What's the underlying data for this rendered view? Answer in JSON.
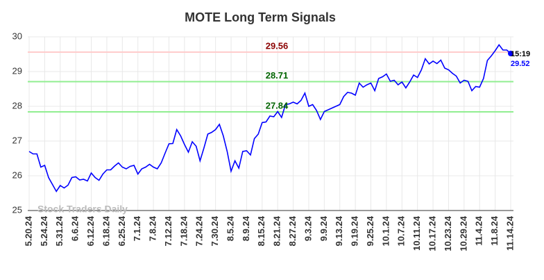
{
  "chart_data": {
    "type": "line",
    "title": "MOTE Long Term Signals",
    "watermark": "Stock Traders Daily",
    "last_label": "15:19",
    "categories": [
      "5.20.24",
      null,
      null,
      null,
      "5.24.24",
      null,
      null,
      null,
      "5.31.24",
      null,
      null,
      null,
      "6.6.24",
      null,
      null,
      null,
      "6.12.24",
      null,
      null,
      null,
      "6.18.24",
      null,
      null,
      null,
      "6.25.24",
      null,
      null,
      null,
      "7.1.24",
      null,
      null,
      null,
      "7.8.24",
      null,
      null,
      null,
      "7.12.24",
      null,
      null,
      null,
      "7.18.24",
      null,
      null,
      null,
      "7.24.24",
      null,
      null,
      null,
      "7.30.24",
      null,
      null,
      null,
      "8.5.24",
      null,
      null,
      null,
      "8.9.24",
      null,
      null,
      null,
      "8.15.24",
      null,
      null,
      null,
      "8.21.24",
      null,
      null,
      null,
      "8.27.24",
      null,
      null,
      null,
      "9.3.24",
      null,
      null,
      null,
      "9.9.24",
      null,
      null,
      null,
      "9.13.24",
      null,
      null,
      null,
      "9.19.24",
      null,
      null,
      null,
      "9.25.24",
      null,
      null,
      null,
      "10.1.24",
      null,
      null,
      null,
      "10.7.24",
      null,
      null,
      null,
      "10.11.24",
      null,
      null,
      null,
      "10.17.24",
      null,
      null,
      null,
      "10.23.24",
      null,
      null,
      null,
      "10.29.24",
      null,
      null,
      null,
      "11.4.24",
      null,
      null,
      null,
      "11.8.24",
      null,
      null,
      null,
      "11.14.24"
    ],
    "values": [
      26.7,
      26.63,
      26.63,
      26.25,
      26.3,
      25.95,
      25.75,
      25.55,
      25.72,
      25.65,
      25.73,
      25.95,
      25.97,
      25.88,
      25.9,
      25.85,
      26.08,
      25.95,
      25.87,
      26.05,
      26.17,
      26.17,
      26.28,
      26.37,
      26.25,
      26.2,
      26.27,
      26.3,
      26.05,
      26.2,
      26.25,
      26.33,
      26.25,
      26.2,
      26.37,
      26.65,
      26.92,
      26.93,
      27.33,
      27.15,
      26.9,
      26.68,
      26.98,
      26.85,
      26.43,
      26.8,
      27.2,
      27.25,
      27.33,
      27.48,
      27.15,
      26.7,
      26.13,
      26.43,
      26.22,
      26.7,
      26.72,
      26.6,
      27.07,
      27.2,
      27.53,
      27.55,
      27.72,
      27.7,
      27.85,
      27.68,
      28.05,
      28.07,
      28.12,
      28.07,
      28.17,
      28.38,
      28.0,
      28.05,
      27.88,
      27.62,
      27.85,
      27.9,
      27.95,
      28.0,
      28.05,
      28.28,
      28.4,
      28.38,
      28.32,
      28.67,
      28.55,
      28.62,
      28.67,
      28.45,
      28.8,
      28.85,
      28.93,
      28.72,
      28.75,
      28.62,
      28.7,
      28.53,
      28.7,
      28.9,
      28.83,
      29.05,
      29.37,
      29.22,
      29.3,
      29.23,
      29.33,
      29.1,
      29.05,
      28.95,
      28.87,
      28.67,
      28.75,
      28.72,
      28.45,
      28.57,
      28.55,
      28.8,
      29.32,
      29.45,
      29.6,
      29.77,
      29.62,
      29.62,
      29.52
    ],
    "color": "#0000ff",
    "hlines": [
      {
        "value": 29.56,
        "color": "#ffcccc",
        "label_color": "#8b0000"
      },
      {
        "value": 28.71,
        "color": "#90ee90",
        "label_color": "#006400"
      },
      {
        "value": 27.84,
        "color": "#90ee90",
        "label_color": "#006400"
      }
    ],
    "ylim": [
      25,
      30
    ],
    "yticks": [
      25,
      26,
      27,
      28,
      29,
      30
    ],
    "grid": true
  }
}
